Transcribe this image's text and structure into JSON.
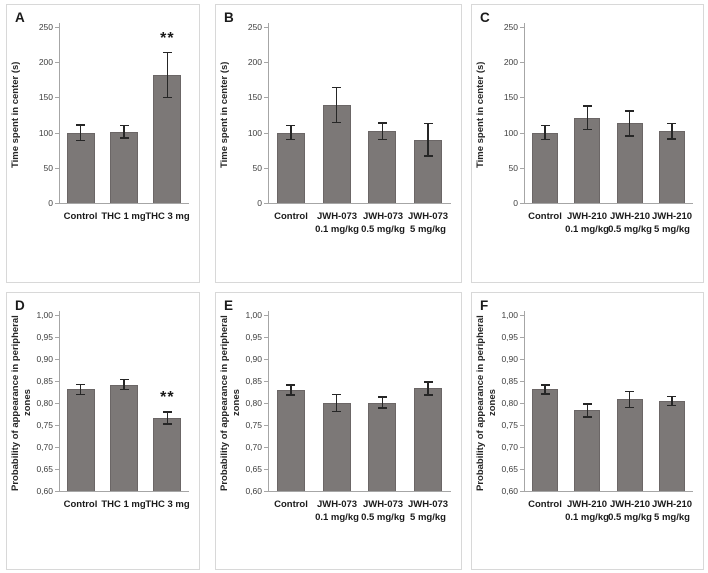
{
  "figure": {
    "description": "Six-panel bar chart figure (A-F): effects of THC, JWH-073 and JWH-210 on time spent in center and probability of appearance in peripheral zones",
    "colors": {
      "bar_fill": "#7c7877",
      "bar_border": "#6b6666",
      "error_bar": "#262626",
      "axis": "#a6a6a6",
      "panel_border": "#d8d8d8",
      "text": "#1a1a1a",
      "background": "#ffffff"
    },
    "significance_note": "** indicates significant difference vs Control"
  },
  "chart_data": [
    {
      "type": "bar",
      "letter": "A",
      "ylabel": "Time spent in center (s)",
      "ylim": [
        0,
        250
      ],
      "yticks": [
        0,
        50,
        100,
        150,
        200,
        250
      ],
      "ytick_labels": [
        "0",
        "50",
        "100",
        "150",
        "200",
        "250"
      ],
      "categories": [
        "Control",
        "THC 1 mg",
        "THC 3 mg"
      ],
      "values": [
        100,
        101,
        182
      ],
      "errors": [
        12,
        10,
        33
      ],
      "sig": [
        "",
        "",
        "**"
      ],
      "grid": false,
      "legend": "none"
    },
    {
      "type": "bar",
      "letter": "B",
      "ylabel": "Time spent in center (s)",
      "ylim": [
        0,
        250
      ],
      "yticks": [
        0,
        50,
        100,
        150,
        200,
        250
      ],
      "ytick_labels": [
        "0",
        "50",
        "100",
        "150",
        "200",
        "250"
      ],
      "categories": [
        "Control",
        "JWH-073\n0.1 mg/kg",
        "JWH-073\n0.5 mg/kg",
        "JWH-073\n5 mg/kg"
      ],
      "values": [
        100,
        139,
        102,
        90
      ],
      "errors": [
        11,
        26,
        13,
        24
      ],
      "sig": [
        "",
        "",
        "",
        ""
      ],
      "grid": false,
      "legend": "none"
    },
    {
      "type": "bar",
      "letter": "C",
      "ylabel": "Time spent in center (s)",
      "ylim": [
        0,
        250
      ],
      "yticks": [
        0,
        50,
        100,
        150,
        200,
        250
      ],
      "ytick_labels": [
        "0",
        "50",
        "100",
        "150",
        "200",
        "250"
      ],
      "categories": [
        "Control",
        "JWH-210\n0.1 mg/kg",
        "JWH-210\n0.5 mg/kg",
        "JWH-210\n5 mg/kg"
      ],
      "values": [
        100,
        121,
        113,
        102
      ],
      "errors": [
        11,
        18,
        19,
        12
      ],
      "sig": [
        "",
        "",
        "",
        ""
      ],
      "grid": false,
      "legend": "none"
    },
    {
      "type": "bar",
      "letter": "D",
      "ylabel": "Probability of appearance in peripheral zones",
      "ylim": [
        0.6,
        1.0
      ],
      "yticks": [
        0.6,
        0.65,
        0.7,
        0.75,
        0.8,
        0.85,
        0.9,
        0.95,
        1.0
      ],
      "ytick_labels": [
        "0,60",
        "0,65",
        "0,70",
        "0,75",
        "0,80",
        "0,85",
        "0,90",
        "0,95",
        "1,00"
      ],
      "categories": [
        "Control",
        "THC 1 mg",
        "THC 3 mg"
      ],
      "values": [
        0.831,
        0.842,
        0.766
      ],
      "errors": [
        0.013,
        0.013,
        0.015
      ],
      "sig": [
        "",
        "",
        "**"
      ],
      "grid": false,
      "legend": "none"
    },
    {
      "type": "bar",
      "letter": "E",
      "ylabel": "Probability of appearance in peripheral zones",
      "ylim": [
        0.6,
        1.0
      ],
      "yticks": [
        0.6,
        0.65,
        0.7,
        0.75,
        0.8,
        0.85,
        0.9,
        0.95,
        1.0
      ],
      "ytick_labels": [
        "0,60",
        "0,65",
        "0,70",
        "0,75",
        "0,80",
        "0,85",
        "0,90",
        "0,95",
        "1,00"
      ],
      "categories": [
        "Control",
        "JWH-073\n0.1 mg/kg",
        "JWH-073\n0.5 mg/kg",
        "JWH-073\n5 mg/kg"
      ],
      "values": [
        0.83,
        0.8,
        0.801,
        0.833
      ],
      "errors": [
        0.013,
        0.021,
        0.014,
        0.016
      ],
      "sig": [
        "",
        "",
        "",
        ""
      ],
      "grid": false,
      "legend": "none"
    },
    {
      "type": "bar",
      "letter": "F",
      "ylabel": "Probability of appearance in peripheral zones",
      "ylim": [
        0.6,
        1.0
      ],
      "yticks": [
        0.6,
        0.65,
        0.7,
        0.75,
        0.8,
        0.85,
        0.9,
        0.95,
        1.0
      ],
      "ytick_labels": [
        "0,60",
        "0,65",
        "0,70",
        "0,75",
        "0,80",
        "0,85",
        "0,90",
        "0,95",
        "1,00"
      ],
      "categories": [
        "Control",
        "JWH-210\n0.1 mg/kg",
        "JWH-210\n0.5 mg/kg",
        "JWH-210\n5 mg/kg"
      ],
      "values": [
        0.831,
        0.783,
        0.808,
        0.805
      ],
      "errors": [
        0.012,
        0.017,
        0.02,
        0.012
      ],
      "sig": [
        "",
        "",
        "",
        ""
      ],
      "grid": false,
      "legend": "none"
    }
  ]
}
